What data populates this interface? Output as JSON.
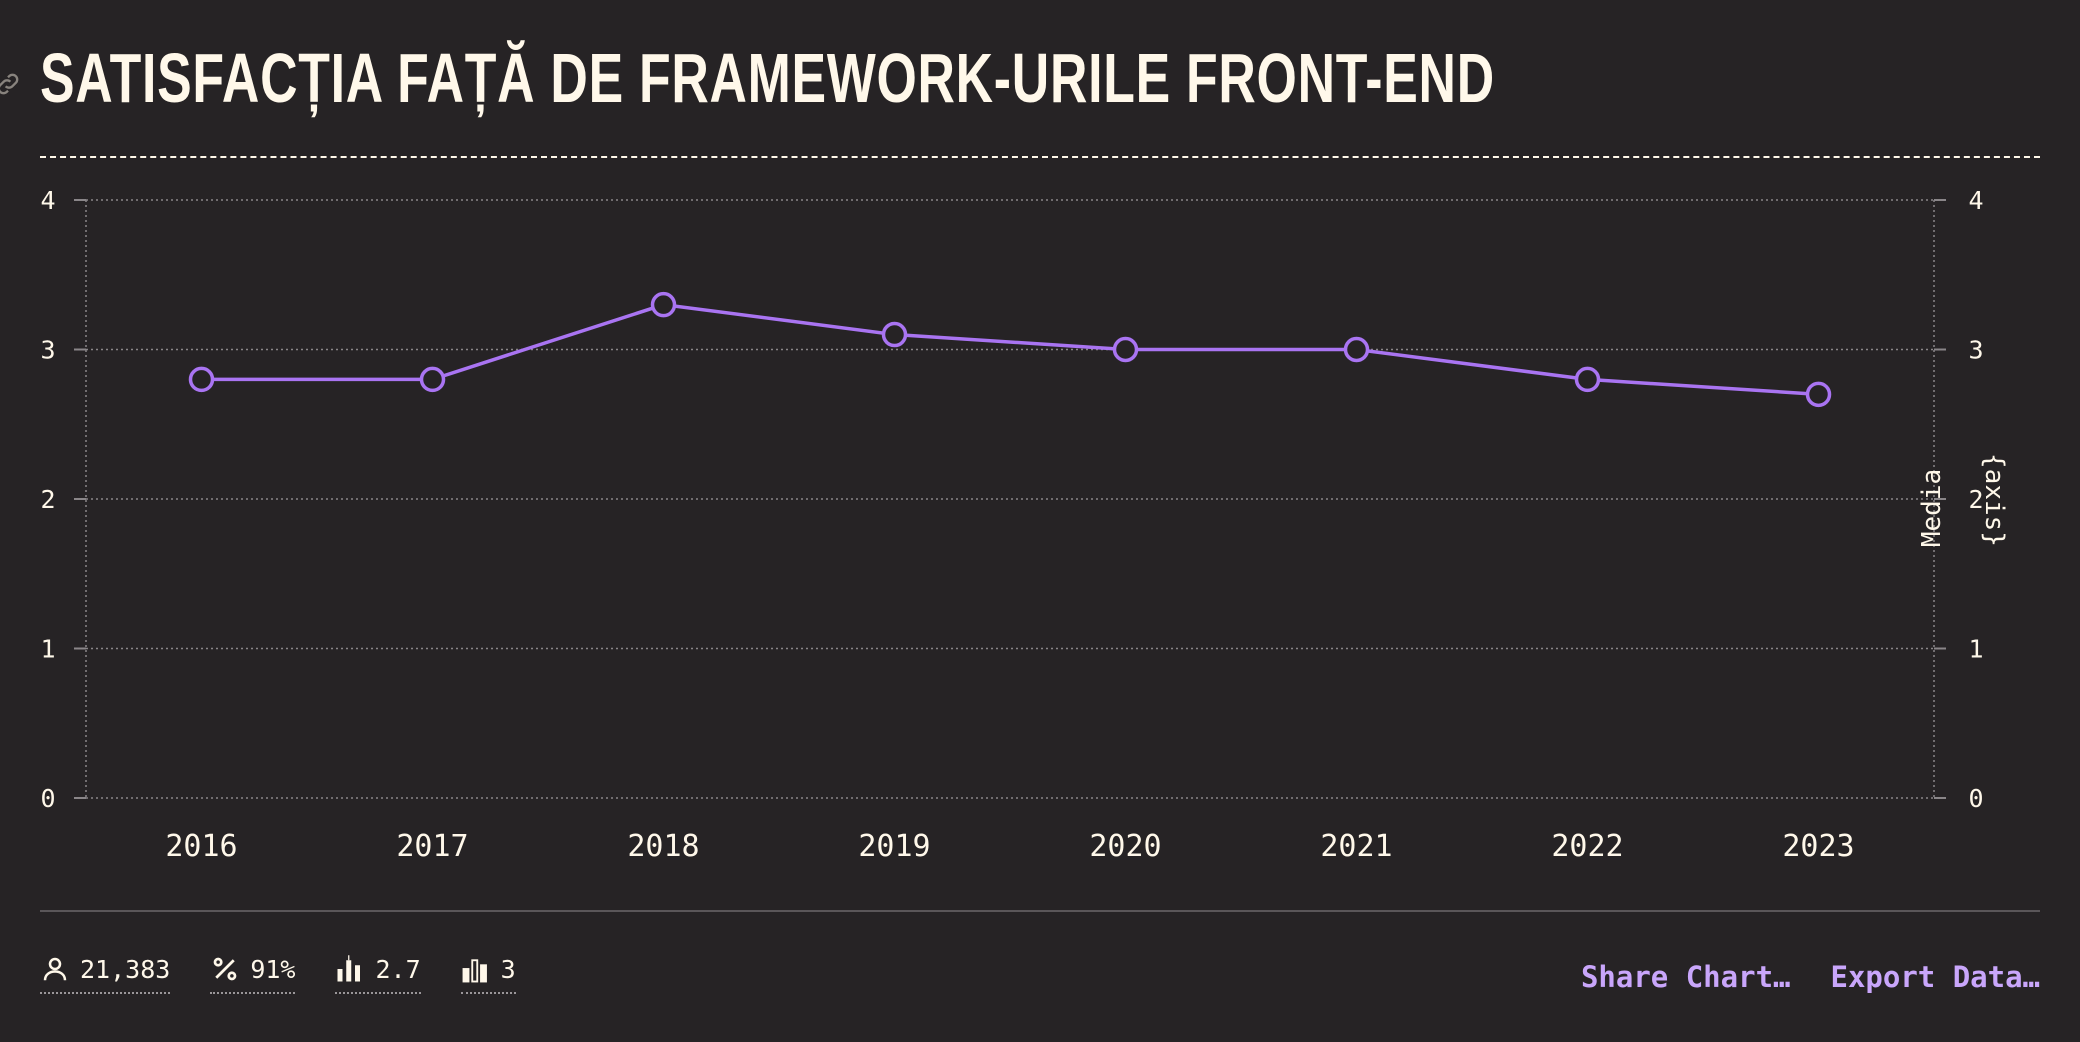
{
  "title": "SATISFACȚIA FAȚĂ DE FRAMEWORK-URILE FRONT-END",
  "chart_data": {
    "type": "line",
    "categories": [
      "2016",
      "2017",
      "2018",
      "2019",
      "2020",
      "2021",
      "2022",
      "2023"
    ],
    "series": [
      {
        "values": [
          2.8,
          2.8,
          3.3,
          3.1,
          3.0,
          3.0,
          2.8,
          2.7
        ],
        "color": "#a974f2"
      }
    ],
    "yticks": [
      0,
      1,
      2,
      3,
      4
    ],
    "ylim": [
      0,
      4
    ],
    "y2label": "Media",
    "y2label_extra": "{axis}",
    "grid": true,
    "title": "SATISFACȚIA FAȚĂ DE FRAMEWORK-URILE FRONT-END"
  },
  "stats": {
    "respondents": {
      "icon": "person-icon",
      "value": "21,383"
    },
    "percentage": {
      "icon": "percent-icon",
      "value": "91%"
    },
    "average": {
      "icon": "bar-average-icon",
      "value": "2.7"
    },
    "median": {
      "icon": "bar-median-icon",
      "value": "3"
    }
  },
  "actions": {
    "share": "Share Chart…",
    "export": "Export Data…"
  },
  "colors": {
    "background": "#262325",
    "text": "#fff8ea",
    "accent": "#a974f2",
    "link": "#c9a6fb"
  }
}
